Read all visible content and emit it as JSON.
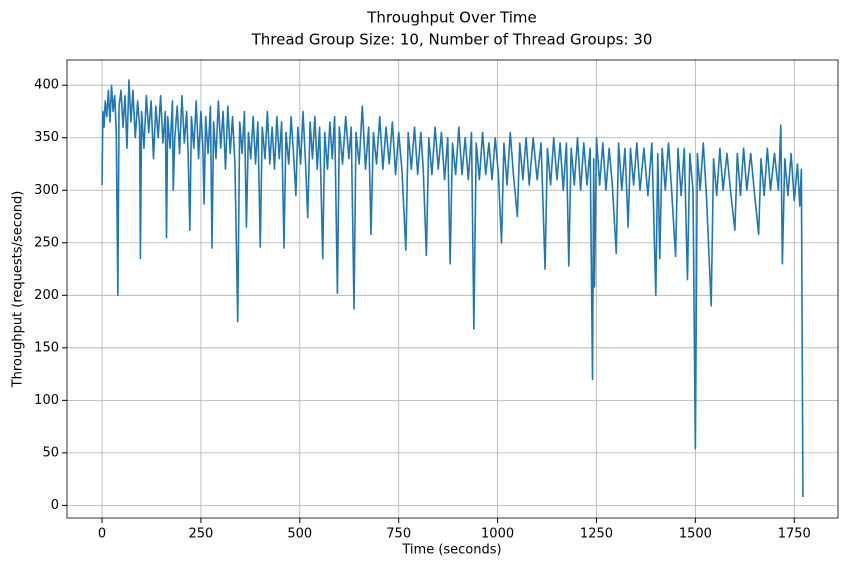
{
  "chart_data": {
    "type": "line",
    "title": "Throughput Over Time",
    "subtitle": "Thread Group Size: 10, Number of Thread Groups: 30",
    "xlabel": "Time (seconds)",
    "ylabel": "Throughput (requests/second)",
    "xlim": [
      -88.6,
      1860.6
    ],
    "ylim": [
      -12,
      424
    ],
    "xticks": [
      0,
      250,
      500,
      750,
      1000,
      1250,
      1500,
      1750
    ],
    "yticks": [
      0,
      50,
      100,
      150,
      200,
      250,
      300,
      350,
      400
    ],
    "grid": true,
    "x": [
      0,
      2,
      5,
      8,
      12,
      16,
      20,
      24,
      28,
      32,
      36,
      40,
      43,
      48,
      53,
      58,
      63,
      68,
      73,
      78,
      84,
      90,
      95,
      97,
      100,
      106,
      112,
      118,
      124,
      130,
      136,
      142,
      148,
      154,
      160,
      163,
      166,
      172,
      178,
      180,
      184,
      190,
      196,
      202,
      208,
      214,
      218,
      222,
      226,
      232,
      238,
      244,
      250,
      255,
      258,
      262,
      268,
      274,
      278,
      282,
      288,
      294,
      300,
      306,
      312,
      318,
      324,
      330,
      336,
      343,
      348,
      354,
      360,
      365,
      370,
      376,
      382,
      388,
      394,
      400,
      405,
      412,
      418,
      424,
      430,
      436,
      442,
      448,
      454,
      460,
      465,
      472,
      478,
      484,
      490,
      495,
      502,
      508,
      514,
      520,
      526,
      532,
      538,
      544,
      550,
      558,
      563,
      570,
      576,
      582,
      588,
      595,
      600,
      608,
      616,
      624,
      630,
      637,
      642,
      650,
      658,
      666,
      674,
      680,
      686,
      694,
      702,
      710,
      718,
      726,
      734,
      742,
      750,
      758,
      768,
      774,
      782,
      790,
      798,
      806,
      812,
      820,
      826,
      834,
      842,
      850,
      858,
      866,
      874,
      880,
      886,
      894,
      902,
      910,
      918,
      926,
      934,
      940,
      946,
      954,
      962,
      970,
      978,
      986,
      994,
      1002,
      1010,
      1016,
      1024,
      1032,
      1040,
      1050,
      1056,
      1064,
      1072,
      1080,
      1090,
      1100,
      1110,
      1120,
      1126,
      1134,
      1142,
      1150,
      1158,
      1166,
      1174,
      1180,
      1186,
      1194,
      1202,
      1210,
      1218,
      1226,
      1234,
      1240,
      1243,
      1245,
      1250,
      1258,
      1266,
      1274,
      1282,
      1290,
      1300,
      1306,
      1314,
      1322,
      1330,
      1336,
      1344,
      1352,
      1360,
      1370,
      1380,
      1390,
      1400,
      1405,
      1410,
      1416,
      1424,
      1432,
      1440,
      1450,
      1456,
      1464,
      1472,
      1480,
      1486,
      1494,
      1500,
      1505,
      1512,
      1520,
      1528,
      1540,
      1546,
      1554,
      1562,
      1570,
      1580,
      1590,
      1600,
      1606,
      1614,
      1622,
      1630,
      1640,
      1650,
      1660,
      1666,
      1674,
      1682,
      1690,
      1700,
      1710,
      1716,
      1720,
      1726,
      1734,
      1742,
      1750,
      1758,
      1764,
      1768,
      1772
    ],
    "series": [
      {
        "name": "Throughput",
        "color": "#1f77b4",
        "values": [
          305,
          375,
          360,
          385,
          370,
          395,
          365,
          400,
          375,
          390,
          355,
          200,
          380,
          395,
          360,
          390,
          340,
          405,
          365,
          395,
          350,
          385,
          360,
          235,
          375,
          340,
          390,
          355,
          385,
          330,
          380,
          350,
          390,
          345,
          375,
          255,
          370,
          340,
          385,
          300,
          350,
          380,
          335,
          390,
          345,
          375,
          330,
          262,
          370,
          340,
          385,
          330,
          375,
          340,
          287,
          370,
          335,
          380,
          245,
          365,
          330,
          385,
          340,
          375,
          320,
          380,
          335,
          370,
          325,
          175,
          365,
          335,
          375,
          265,
          355,
          330,
          370,
          325,
          365,
          246,
          360,
          330,
          375,
          325,
          360,
          320,
          370,
          330,
          365,
          245,
          355,
          325,
          370,
          335,
          295,
          360,
          325,
          375,
          330,
          274,
          365,
          330,
          370,
          320,
          360,
          235,
          355,
          320,
          365,
          330,
          370,
          202,
          360,
          325,
          370,
          330,
          360,
          187,
          355,
          325,
          380,
          320,
          360,
          258,
          355,
          325,
          370,
          320,
          360,
          325,
          365,
          315,
          355,
          320,
          243,
          355,
          320,
          360,
          315,
          355,
          320,
          238,
          350,
          315,
          360,
          320,
          355,
          310,
          350,
          230,
          345,
          315,
          360,
          315,
          350,
          310,
          355,
          168,
          345,
          310,
          355,
          315,
          345,
          310,
          350,
          315,
          250,
          345,
          305,
          355,
          315,
          275,
          345,
          310,
          350,
          305,
          350,
          310,
          345,
          225,
          340,
          305,
          350,
          310,
          345,
          300,
          345,
          228,
          340,
          305,
          350,
          300,
          345,
          305,
          340,
          120,
          330,
          208,
          350,
          305,
          345,
          300,
          340,
          305,
          240,
          345,
          300,
          340,
          265,
          340,
          305,
          345,
          300,
          340,
          295,
          345,
          200,
          335,
          235,
          340,
          300,
          345,
          300,
          237,
          340,
          295,
          340,
          215,
          335,
          300,
          54,
          335,
          300,
          345,
          295,
          190,
          330,
          295,
          340,
          300,
          335,
          295,
          262,
          335,
          295,
          340,
          300,
          335,
          295,
          258,
          330,
          295,
          340,
          300,
          335,
          300,
          362,
          230,
          330,
          295,
          335,
          290,
          325,
          285,
          320,
          8
        ]
      }
    ]
  }
}
